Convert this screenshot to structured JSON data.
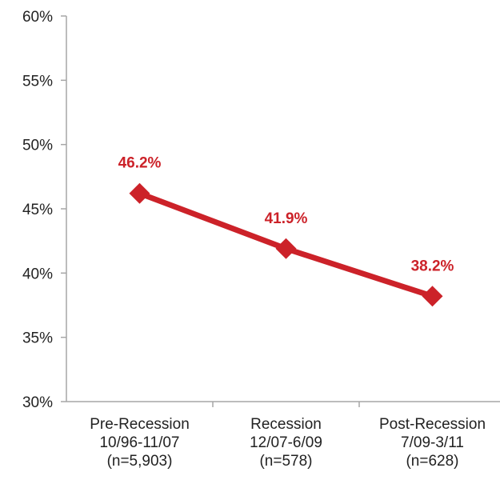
{
  "chart_data": {
    "type": "line",
    "categories": [
      [
        "Pre-Recession",
        "10/96-11/07",
        "(n=5,903)"
      ],
      [
        "Recession",
        "12/07-6/09",
        "(n=578)"
      ],
      [
        "Post-Recession",
        "7/09-3/11",
        "(n=628)"
      ]
    ],
    "series": [
      {
        "values": [
          46.2,
          41.9,
          38.2
        ],
        "data_labels": [
          "46.2%",
          "41.9%",
          "38.2%"
        ],
        "color": "#cc2229",
        "marker": "diamond"
      }
    ],
    "ylim": [
      30,
      60
    ],
    "yticks": [
      30,
      35,
      40,
      45,
      50,
      55,
      60
    ],
    "ytick_labels": [
      "30%",
      "35%",
      "40%",
      "45%",
      "50%",
      "55%",
      "60%"
    ],
    "grid": false,
    "legend": "none",
    "axis_color": "#a6a6a6"
  }
}
